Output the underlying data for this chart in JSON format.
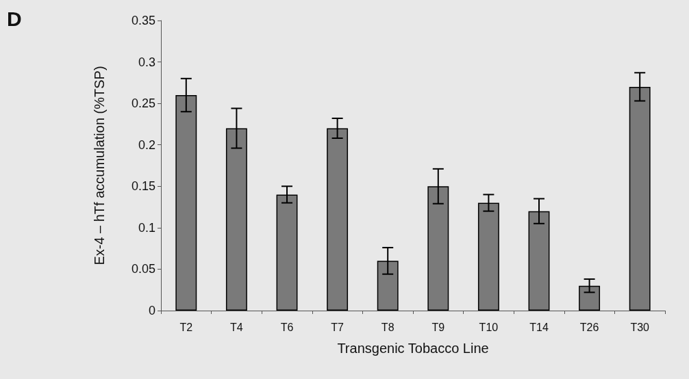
{
  "chart_data": {
    "type": "bar",
    "xlabel": "Transgenic Tobacco Line",
    "ylabel": "Ex-4 – hTf accumulation (%TSP)",
    "annotations": [
      "D"
    ],
    "categories": [
      "T2",
      "T4",
      "T6",
      "T7",
      "T8",
      "T9",
      "T10",
      "T14",
      "T26",
      "T30"
    ],
    "values": [
      0.26,
      0.22,
      0.14,
      0.22,
      0.06,
      0.15,
      0.13,
      0.12,
      0.03,
      0.27
    ],
    "errors": [
      0.02,
      0.024,
      0.01,
      0.012,
      0.016,
      0.021,
      0.01,
      0.015,
      0.008,
      0.017
    ],
    "color": "#7a7a7a",
    "ylim": [
      0,
      0.35
    ],
    "yticks": [
      0,
      0.05,
      0.1,
      0.15,
      0.2,
      0.25,
      0.3,
      0.35
    ],
    "grid": false
  }
}
